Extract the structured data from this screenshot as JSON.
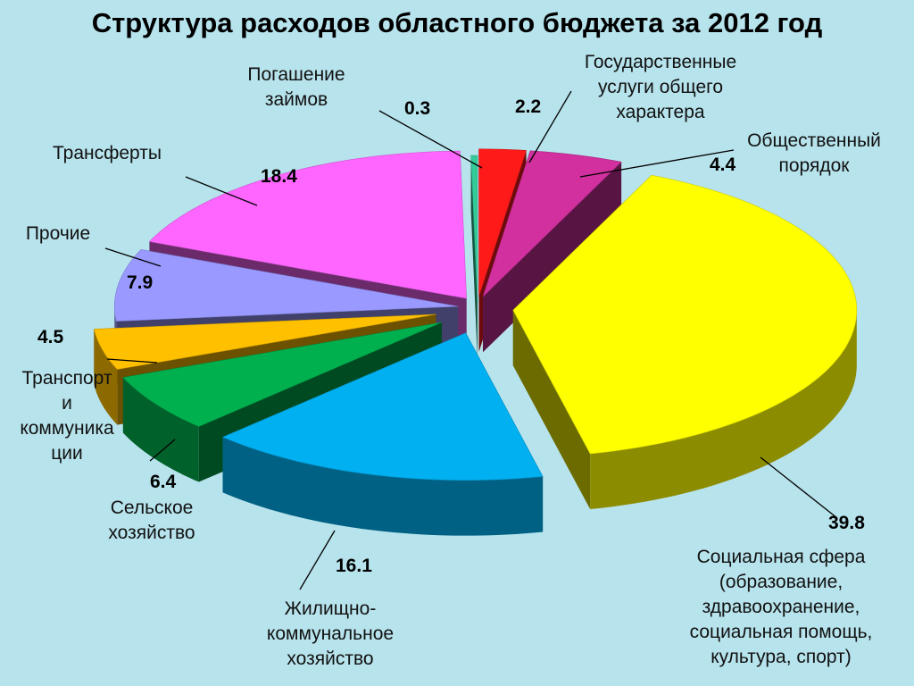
{
  "chart_data": {
    "type": "pie",
    "title": "Структура расходов областного бюджета за 2012 год",
    "slices": [
      {
        "label": "Государственные услуги общего характера",
        "value": 2.2,
        "color": "#ff1a1a"
      },
      {
        "label": "Общественный порядок",
        "value": 4.4,
        "color": "#d1309e"
      },
      {
        "label": "Социальная сфера (образование, здравоохранение, социальная помощь, культура, спорт)",
        "value": 39.8,
        "color": "#ffff00"
      },
      {
        "label": "Жилищно-коммунальное хозяйство",
        "value": 16.1,
        "color": "#00b0f0"
      },
      {
        "label": "Сельское хозяйство",
        "value": 6.4,
        "color": "#00b04f"
      },
      {
        "label": "Транспорт и коммуникации",
        "value": 4.5,
        "color": "#ffc000"
      },
      {
        "label": "Прочие",
        "value": 7.9,
        "color": "#9999ff"
      },
      {
        "label": "Трансферты",
        "value": 18.4,
        "color": "#ff66ff"
      },
      {
        "label": "Погашение займов",
        "value": 0.3,
        "color": "#33cc99"
      }
    ],
    "value_labels": [
      "2.2",
      "4.4",
      "39.8",
      "16.1",
      "6.4",
      "4.5",
      "7.9",
      "18.4",
      "0.3"
    ],
    "legend": "none",
    "label_lines": {
      "gov": [
        "Государственные",
        "услуги общего",
        "характера"
      ],
      "order": [
        "Общественный",
        "порядок"
      ],
      "social": [
        "Социальная сфера",
        "(образование,",
        "здравоохранение,",
        "социальная помощь,",
        "культура, спорт)"
      ],
      "housing": [
        "Жилищно-",
        "коммунальное",
        "хозяйство"
      ],
      "agri": [
        "Сельское",
        "хозяйство"
      ],
      "transport": [
        "Транспорт",
        "и",
        "коммуника",
        "ции"
      ],
      "other": [
        "Прочие"
      ],
      "transfer": [
        "Трансферты"
      ],
      "loans": [
        "Погашение",
        "займов"
      ]
    }
  }
}
